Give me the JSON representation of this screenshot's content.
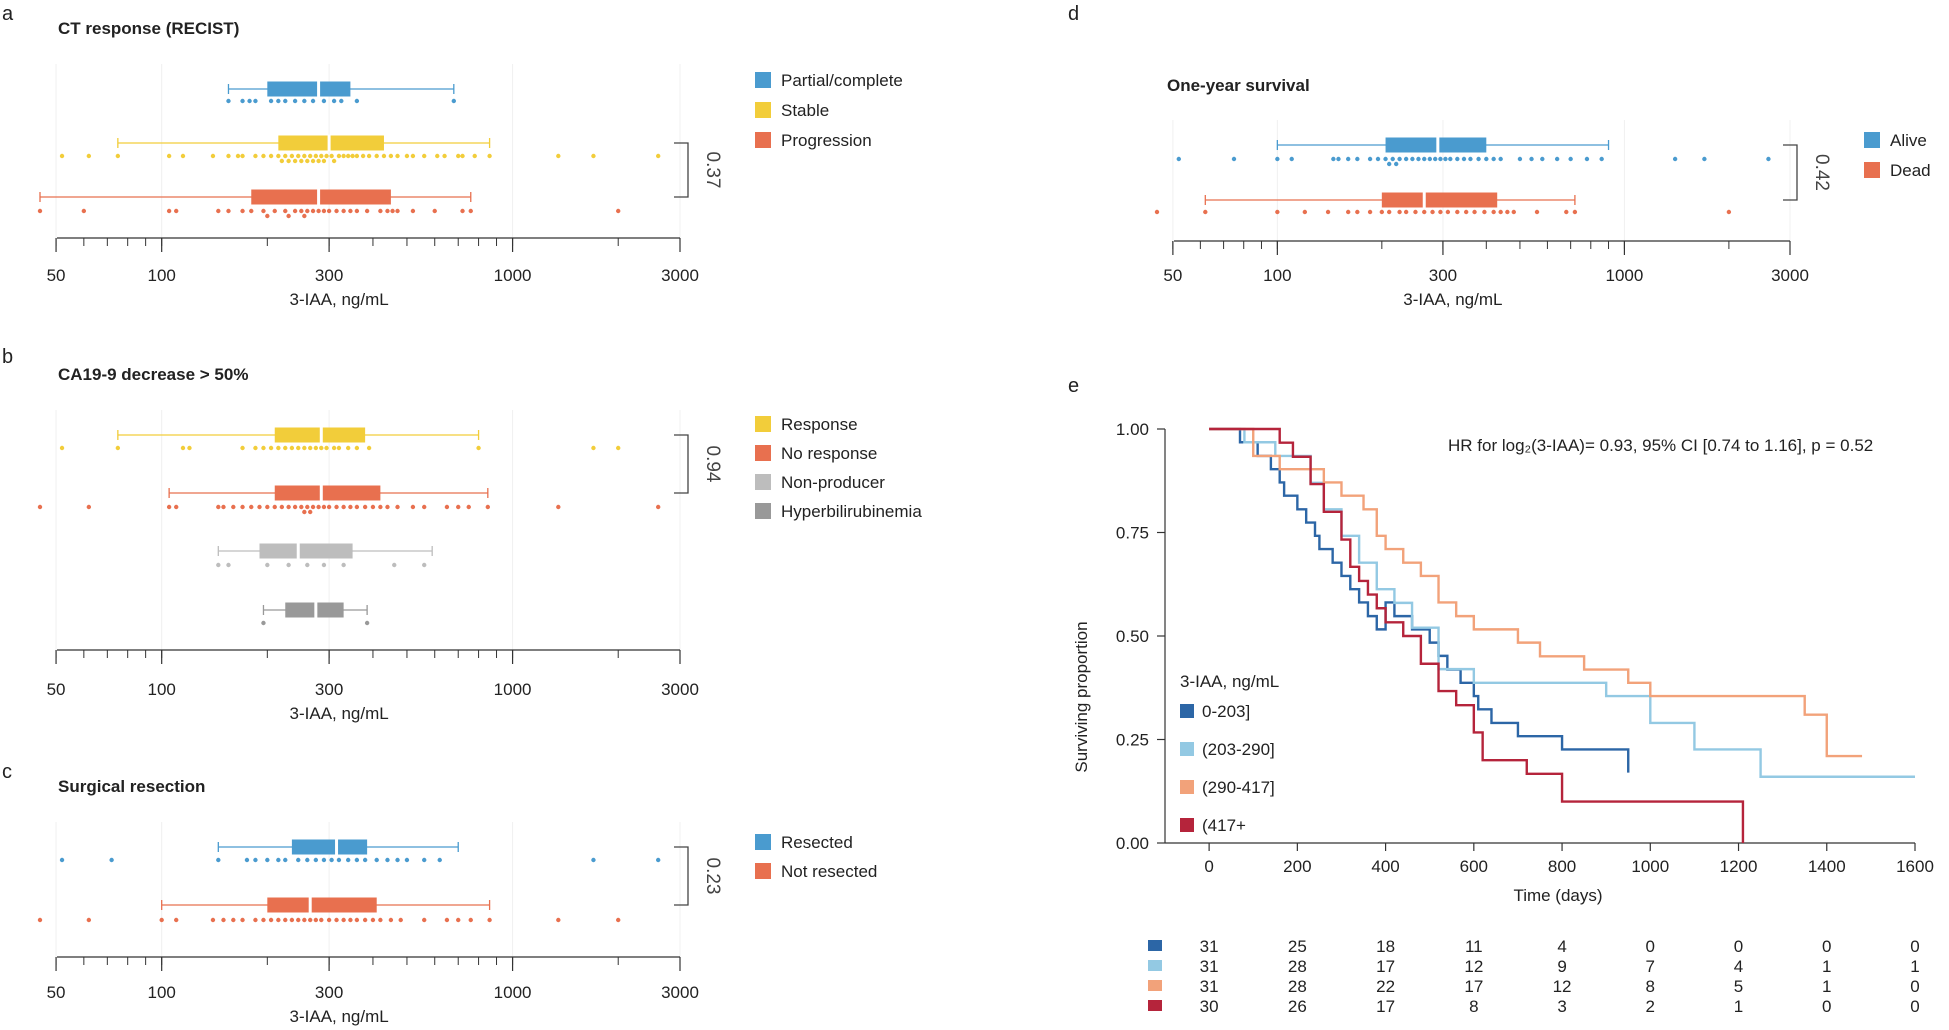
{
  "colors": {
    "blue": "#4a9bcf",
    "yellow": "#f2cd3a",
    "orange": "#e8704f",
    "gray_light": "#bdbdbd",
    "gray_dark": "#999999",
    "km_dark_blue": "#2c66a6",
    "km_light_blue": "#93c9e3",
    "km_orange": "#f2a27a",
    "km_red": "#b5243b"
  },
  "panels": {
    "a": {
      "letter": "a",
      "title": "CT response (RECIST)",
      "pvalue": "0.37",
      "legend": [
        "Partial/complete",
        "Stable",
        "Progression"
      ],
      "xlabel": "3-IAA, ng/mL"
    },
    "b": {
      "letter": "b",
      "title": "CA19-9 decrease > 50%",
      "pvalue": "0.94",
      "legend": [
        "Response",
        "No response",
        "Non-producer",
        "Hyperbilirubinemia"
      ],
      "xlabel": "3-IAA, ng/mL"
    },
    "c": {
      "letter": "c",
      "title": "Surgical resection",
      "pvalue": "0.23",
      "legend": [
        "Resected",
        "Not resected"
      ],
      "xlabel": "3-IAA, ng/mL"
    },
    "d": {
      "letter": "d",
      "title": "One-year survival",
      "pvalue": "0.42",
      "legend": [
        "Alive",
        "Dead"
      ],
      "xlabel": "3-IAA, ng/mL"
    },
    "e": {
      "letter": "e",
      "hr_text": "HR for log₂(3-IAA)= 0.93,  95% CI [0.74 to 1.16], p = 0.52",
      "ylabel": "Surviving proportion",
      "xlabel": "Time (days)",
      "legend_title": "3-IAA, ng/mL",
      "legend": [
        "0-203]",
        "(203-290]",
        "(290-417]",
        "(417+"
      ]
    }
  },
  "chart_data": [
    {
      "id": "a",
      "type": "box",
      "title": "CT response (RECIST)",
      "xlabel": "3-IAA, ng/mL",
      "xscale": "log",
      "xlim": [
        45,
        3000
      ],
      "xticks": [
        50,
        100,
        300,
        1000,
        3000
      ],
      "series": [
        {
          "name": "Partial/complete",
          "color": "blue",
          "min": 155,
          "q1": 200,
          "median": 280,
          "q3": 345,
          "max": 680,
          "points": [
            155,
            170,
            178,
            185,
            205,
            215,
            225,
            240,
            255,
            270,
            290,
            310,
            325,
            360,
            680
          ]
        },
        {
          "name": "Stable",
          "color": "yellow",
          "min": 75,
          "q1": 215,
          "median": 300,
          "q3": 430,
          "max": 860,
          "points": [
            52,
            62,
            75,
            105,
            115,
            140,
            155,
            165,
            170,
            185,
            195,
            205,
            215,
            220,
            225,
            230,
            235,
            240,
            245,
            250,
            255,
            260,
            265,
            270,
            275,
            280,
            285,
            290,
            295,
            305,
            310,
            320,
            330,
            340,
            350,
            360,
            375,
            390,
            410,
            430,
            450,
            470,
            500,
            520,
            560,
            610,
            640,
            700,
            720,
            780,
            860,
            1350,
            1700,
            2600
          ]
        },
        {
          "name": "Progression",
          "color": "orange",
          "min": 45,
          "q1": 180,
          "median": 280,
          "q3": 450,
          "max": 760,
          "points": [
            45,
            60,
            105,
            110,
            145,
            155,
            170,
            180,
            195,
            200,
            210,
            225,
            230,
            240,
            250,
            255,
            260,
            270,
            280,
            290,
            300,
            315,
            330,
            345,
            360,
            385,
            420,
            440,
            455,
            470,
            520,
            600,
            720,
            760,
            2000
          ]
        }
      ],
      "comparison_p": 0.37
    },
    {
      "id": "b",
      "type": "box",
      "title": "CA19-9 decrease > 50%",
      "xlabel": "3-IAA, ng/mL",
      "xscale": "log",
      "xlim": [
        45,
        3000
      ],
      "xticks": [
        50,
        100,
        300,
        1000,
        3000
      ],
      "series": [
        {
          "name": "Response",
          "color": "yellow",
          "min": 75,
          "q1": 210,
          "median": 285,
          "q3": 380,
          "max": 800,
          "points": [
            52,
            75,
            115,
            120,
            170,
            185,
            195,
            205,
            215,
            225,
            235,
            245,
            255,
            265,
            275,
            285,
            295,
            310,
            320,
            340,
            360,
            390,
            800,
            1700,
            2000
          ]
        },
        {
          "name": "No response",
          "color": "orange",
          "min": 105,
          "q1": 210,
          "median": 285,
          "q3": 420,
          "max": 850,
          "points": [
            45,
            62,
            105,
            110,
            145,
            150,
            160,
            170,
            180,
            190,
            200,
            210,
            220,
            230,
            240,
            250,
            255,
            260,
            265,
            270,
            280,
            290,
            300,
            315,
            330,
            345,
            360,
            380,
            400,
            420,
            440,
            470,
            520,
            560,
            650,
            700,
            750,
            850,
            1350,
            2600
          ]
        },
        {
          "name": "Non-producer",
          "color": "gray_light",
          "min": 145,
          "q1": 190,
          "median": 245,
          "q3": 350,
          "max": 590,
          "points": [
            145,
            155,
            200,
            230,
            260,
            290,
            330,
            460,
            560
          ]
        },
        {
          "name": "Hyperbilirubinemia",
          "color": "gray_dark",
          "min": 195,
          "q1": 225,
          "median": 275,
          "q3": 330,
          "max": 385,
          "points": [
            195,
            385
          ]
        }
      ],
      "comparison_p": 0.94
    },
    {
      "id": "c",
      "type": "box",
      "title": "Surgical resection",
      "xlabel": "3-IAA, ng/mL",
      "xscale": "log",
      "xlim": [
        45,
        3000
      ],
      "xticks": [
        50,
        100,
        300,
        1000,
        3000
      ],
      "series": [
        {
          "name": "Resected",
          "color": "blue",
          "min": 145,
          "q1": 235,
          "median": 315,
          "q3": 385,
          "max": 700,
          "points": [
            52,
            72,
            145,
            175,
            185,
            200,
            215,
            225,
            245,
            260,
            275,
            290,
            305,
            320,
            340,
            360,
            380,
            410,
            440,
            470,
            500,
            560,
            620,
            1700,
            2600
          ]
        },
        {
          "name": "Not resected",
          "color": "orange",
          "min": 100,
          "q1": 200,
          "median": 265,
          "q3": 410,
          "max": 860,
          "points": [
            45,
            62,
            100,
            110,
            140,
            150,
            160,
            170,
            185,
            195,
            205,
            215,
            225,
            235,
            245,
            255,
            265,
            275,
            285,
            300,
            315,
            330,
            345,
            360,
            380,
            400,
            420,
            450,
            480,
            560,
            650,
            700,
            760,
            860,
            1350,
            2000
          ]
        }
      ],
      "comparison_p": 0.23
    },
    {
      "id": "d",
      "type": "box",
      "title": "One-year survival",
      "xlabel": "3-IAA, ng/mL",
      "xscale": "log",
      "xlim": [
        45,
        3000
      ],
      "xticks": [
        50,
        100,
        300,
        1000,
        3000
      ],
      "series": [
        {
          "name": "Alive",
          "color": "blue",
          "min": 100,
          "q1": 205,
          "median": 290,
          "q3": 400,
          "max": 900,
          "points": [
            52,
            75,
            100,
            110,
            145,
            150,
            160,
            170,
            185,
            195,
            205,
            210,
            215,
            220,
            225,
            235,
            245,
            255,
            265,
            275,
            285,
            295,
            305,
            315,
            330,
            345,
            360,
            380,
            400,
            420,
            440,
            500,
            540,
            580,
            640,
            700,
            780,
            860,
            1400,
            1700,
            2600
          ]
        },
        {
          "name": "Dead",
          "color": "orange",
          "min": 62,
          "q1": 200,
          "median": 265,
          "q3": 430,
          "max": 720,
          "points": [
            45,
            62,
            100,
            120,
            140,
            160,
            170,
            185,
            200,
            210,
            225,
            235,
            250,
            265,
            280,
            295,
            310,
            330,
            350,
            370,
            395,
            420,
            440,
            460,
            480,
            560,
            680,
            720,
            2000
          ]
        }
      ],
      "comparison_p": 0.42
    },
    {
      "id": "e",
      "type": "line",
      "subtype": "kaplan-meier",
      "title": "",
      "xlabel": "Time (days)",
      "ylabel": "Surviving proportion",
      "xlim": [
        -100,
        1600
      ],
      "ylim": [
        0,
        1
      ],
      "xticks": [
        0,
        200,
        400,
        600,
        800,
        1000,
        1200,
        1400,
        1600
      ],
      "yticks": [
        0.0,
        0.25,
        0.5,
        0.75,
        1.0
      ],
      "yticklabels": [
        "0.00",
        "0.25",
        "0.50",
        "0.75",
        "1.00"
      ],
      "series": [
        {
          "name": "0-203]",
          "color": "km_dark_blue",
          "x": [
            0,
            70,
            110,
            140,
            160,
            170,
            200,
            220,
            240,
            250,
            280,
            300,
            320,
            340,
            360,
            380,
            400,
            420,
            460,
            500,
            520,
            540,
            570,
            600,
            610,
            640,
            700,
            800,
            950
          ],
          "y": [
            1.0,
            0.968,
            0.935,
            0.903,
            0.871,
            0.839,
            0.806,
            0.774,
            0.742,
            0.71,
            0.677,
            0.645,
            0.613,
            0.581,
            0.548,
            0.516,
            0.581,
            0.548,
            0.516,
            0.484,
            0.452,
            0.419,
            0.387,
            0.355,
            0.323,
            0.29,
            0.258,
            0.226,
            0.17
          ]
        },
        {
          "name": "(203-290]",
          "color": "km_light_blue",
          "x": [
            0,
            80,
            150,
            230,
            260,
            300,
            340,
            380,
            420,
            460,
            520,
            600,
            900,
            1000,
            1100,
            1250,
            1300,
            1600
          ],
          "y": [
            1.0,
            0.968,
            0.935,
            0.87,
            0.806,
            0.742,
            0.677,
            0.613,
            0.58,
            0.52,
            0.42,
            0.387,
            0.355,
            0.29,
            0.226,
            0.16,
            0.16,
            0.16
          ]
        },
        {
          "name": "(290-417]",
          "color": "km_orange",
          "x": [
            0,
            100,
            160,
            260,
            300,
            350,
            380,
            400,
            440,
            480,
            520,
            560,
            600,
            700,
            750,
            850,
            950,
            1000,
            1350,
            1400,
            1480
          ],
          "y": [
            1.0,
            0.935,
            0.903,
            0.871,
            0.839,
            0.806,
            0.742,
            0.71,
            0.677,
            0.645,
            0.581,
            0.548,
            0.516,
            0.484,
            0.451,
            0.419,
            0.387,
            0.355,
            0.31,
            0.21,
            0.21
          ]
        },
        {
          "name": "(417+",
          "color": "km_red",
          "x": [
            0,
            160,
            190,
            230,
            260,
            300,
            320,
            340,
            360,
            380,
            400,
            440,
            480,
            520,
            560,
            600,
            620,
            720,
            800,
            1000,
            1170,
            1210
          ],
          "y": [
            1.0,
            0.967,
            0.933,
            0.867,
            0.8,
            0.733,
            0.667,
            0.633,
            0.6,
            0.567,
            0.533,
            0.5,
            0.433,
            0.367,
            0.333,
            0.267,
            0.2,
            0.167,
            0.1,
            0.1,
            0.1,
            0.0
          ]
        }
      ],
      "hr_annotation": "HR for log₂(3-IAA)= 0.93,  95% CI [0.74 to 1.16], p = 0.52",
      "risk_table": {
        "times": [
          0,
          200,
          400,
          600,
          800,
          1000,
          1200,
          1400,
          1600
        ],
        "rows": [
          {
            "color": "km_dark_blue",
            "values": [
              31,
              25,
              18,
              11,
              4,
              0,
              0,
              0,
              0
            ]
          },
          {
            "color": "km_light_blue",
            "values": [
              31,
              28,
              17,
              12,
              9,
              7,
              4,
              1,
              1
            ]
          },
          {
            "color": "km_orange",
            "values": [
              31,
              28,
              22,
              17,
              12,
              8,
              5,
              1,
              0
            ]
          },
          {
            "color": "km_red",
            "values": [
              30,
              26,
              17,
              8,
              3,
              2,
              1,
              0,
              0
            ]
          }
        ]
      }
    }
  ]
}
